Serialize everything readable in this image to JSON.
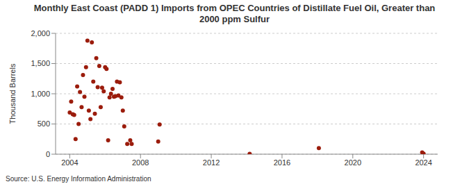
{
  "chart_data": {
    "type": "scatter",
    "title": "Monthly East Coast (PADD 1) Imports from OPEC Countries of Distillate Fuel Oil, Greater than 2000 ppm Sulfur",
    "ylabel": "Thousand Barrels",
    "source": "Source: U.S. Energy Information Administration",
    "x": [
      2004.0,
      2004.08,
      2004.17,
      2004.25,
      2004.33,
      2004.42,
      2004.5,
      2004.58,
      2004.67,
      2004.75,
      2004.83,
      2004.92,
      2005.0,
      2005.08,
      2005.17,
      2005.25,
      2005.33,
      2005.42,
      2005.5,
      2005.58,
      2005.67,
      2005.75,
      2005.83,
      2005.92,
      2006.0,
      2006.08,
      2006.17,
      2006.25,
      2006.33,
      2006.42,
      2006.5,
      2006.58,
      2006.67,
      2006.75,
      2006.83,
      2006.92,
      2007.0,
      2007.08,
      2007.25,
      2007.42,
      2007.5,
      2009.0,
      2009.08,
      2014.17,
      2018.08,
      2023.92,
      2024.0
    ],
    "values": [
      690,
      870,
      660,
      650,
      250,
      1120,
      500,
      1030,
      780,
      1310,
      950,
      1440,
      1880,
      720,
      580,
      1850,
      1200,
      670,
      1590,
      1110,
      1460,
      780,
      1100,
      1040,
      1440,
      1410,
      230,
      940,
      1000,
      1080,
      950,
      960,
      1200,
      970,
      1190,
      940,
      720,
      460,
      170,
      230,
      170,
      210,
      490,
      5,
      100,
      30,
      10
    ],
    "color": "#9b1c0c",
    "marker": "circle",
    "xlim": [
      2003.2,
      2024.8
    ],
    "xticks": [
      2004,
      2008,
      2012,
      2016,
      2020,
      2024
    ],
    "ylim": [
      0,
      2000
    ],
    "yticks": [
      0,
      500,
      {
        "value": 1000,
        "label": "1,000"
      },
      {
        "value": 1500,
        "label": "1,500"
      },
      {
        "value": 2000,
        "label": "2,000"
      }
    ],
    "grid": true
  }
}
